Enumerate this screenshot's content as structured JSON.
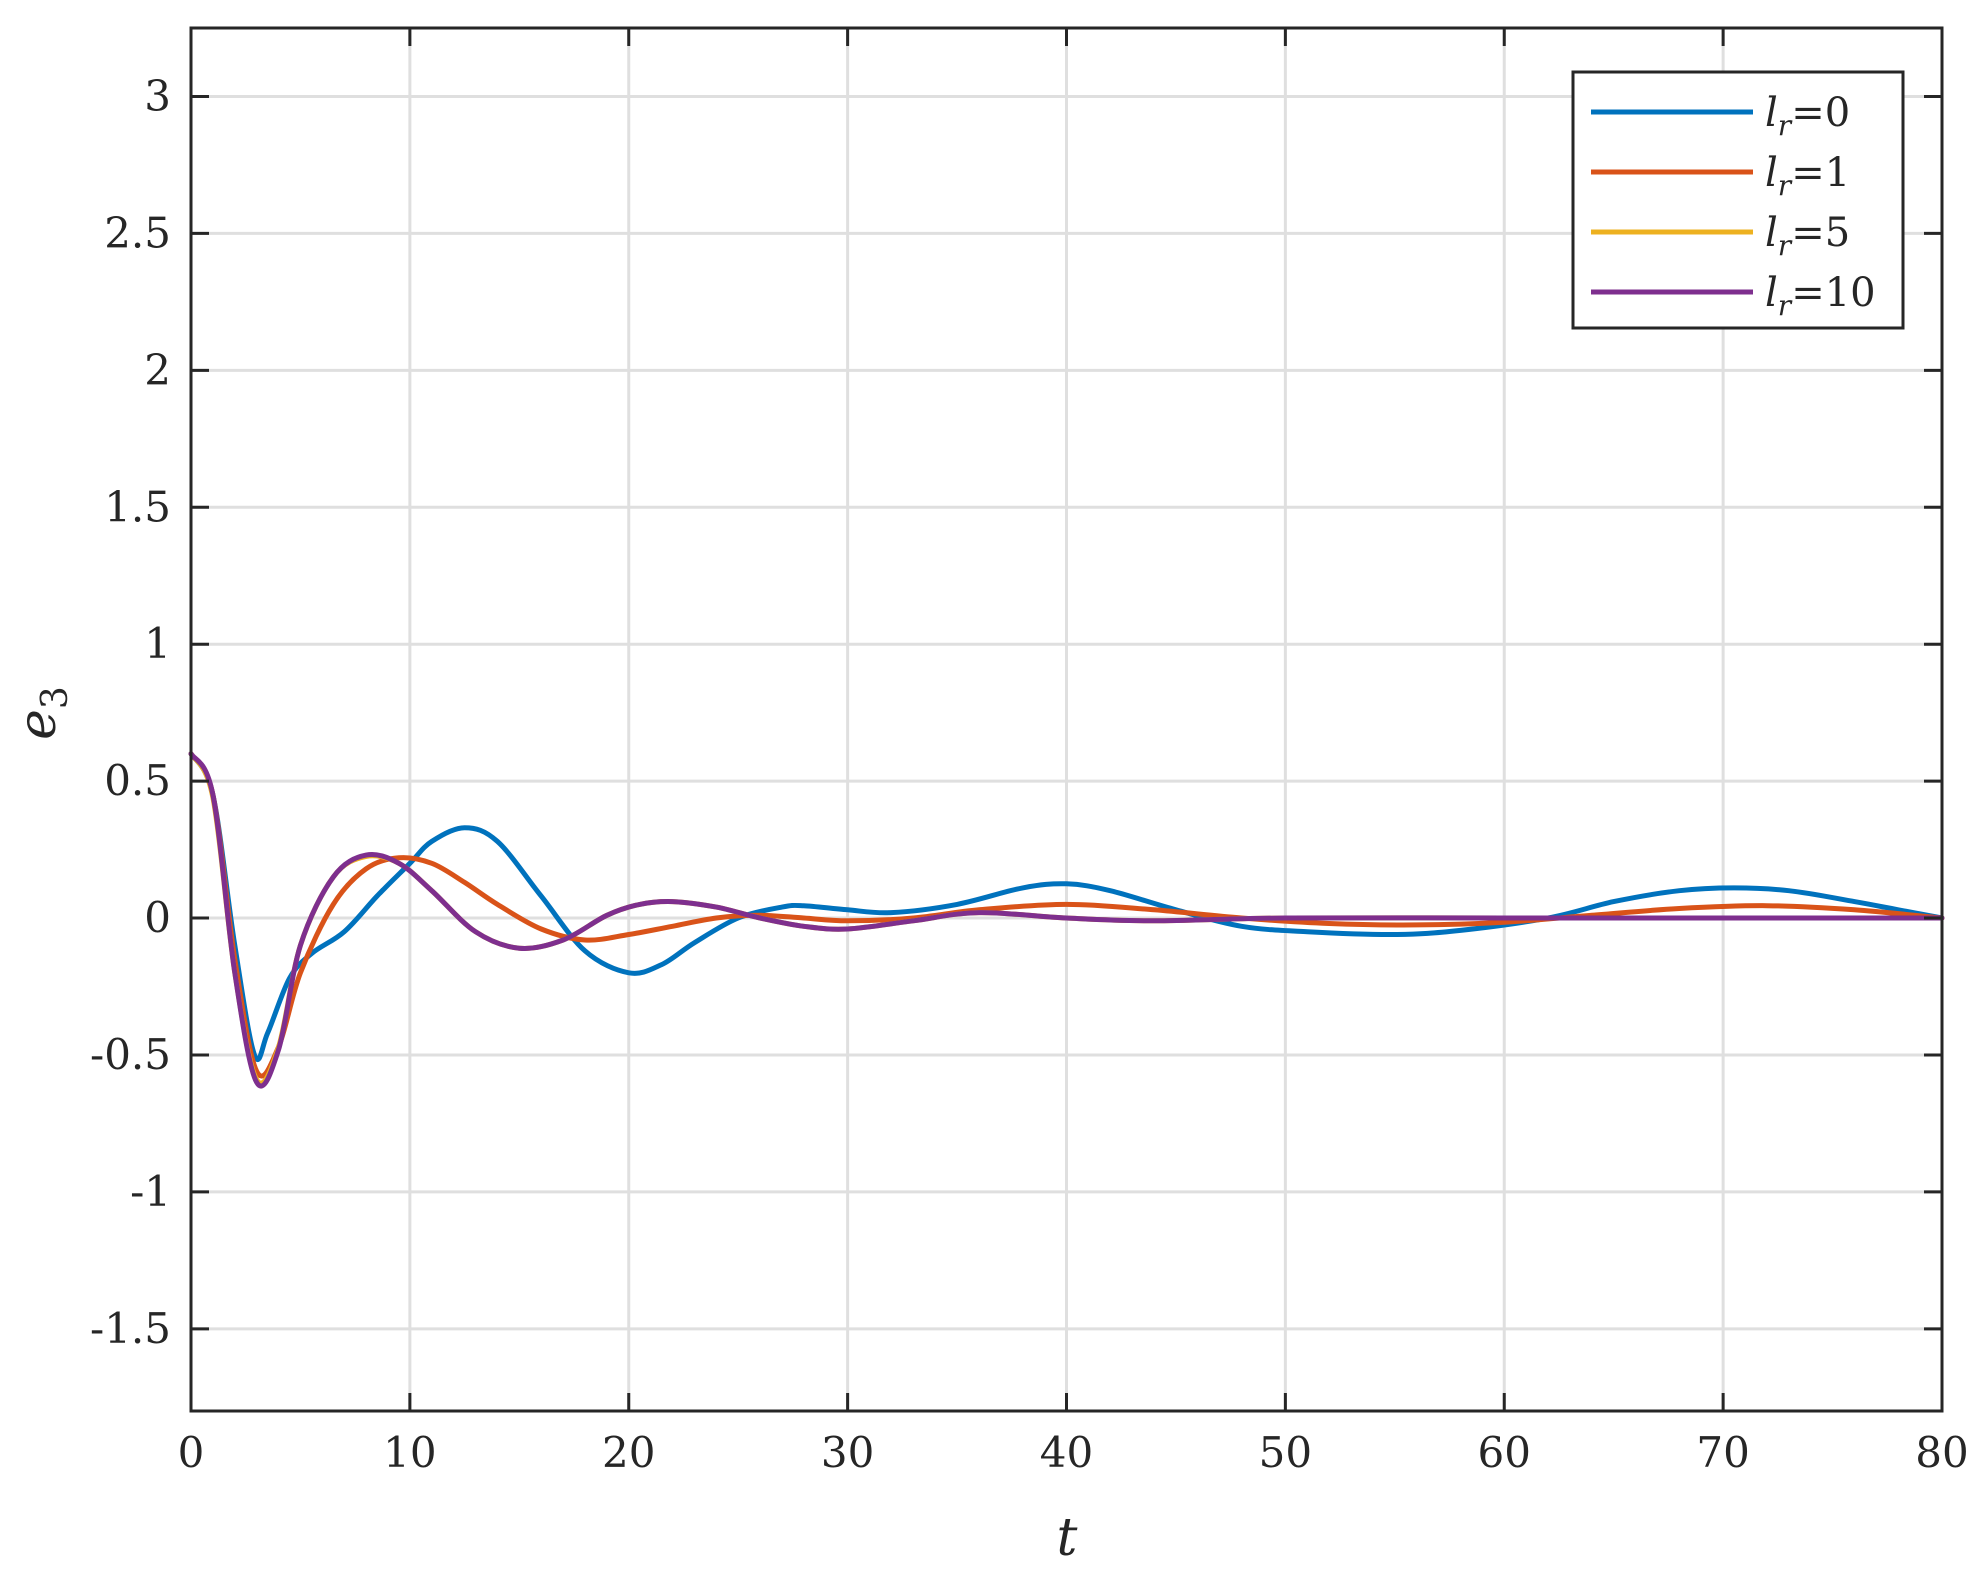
{
  "chart_data": {
    "type": "line",
    "xlabel": "t",
    "ylabel": "e",
    "ylabel_subscript": "3",
    "xlim": [
      0,
      80
    ],
    "ylim": [
      -1.8,
      3.25
    ],
    "xticks": [
      0,
      10,
      20,
      30,
      40,
      50,
      60,
      70,
      80
    ],
    "xtick_labels": [
      "0",
      "10",
      "20",
      "30",
      "40",
      "50",
      "60",
      "70",
      "80"
    ],
    "yticks": [
      -1.5,
      -1,
      -0.5,
      0,
      0.5,
      1,
      1.5,
      2,
      2.5,
      3
    ],
    "ytick_labels": [
      "-1.5",
      "-1",
      "-0.5",
      "0",
      "0.5",
      "1",
      "1.5",
      "2",
      "2.5",
      "3"
    ],
    "grid": true,
    "legend_position": "top-right",
    "series": [
      {
        "name": "l_r=0",
        "legend_var": "l",
        "legend_sub": "r",
        "legend_value": "=0",
        "color": "#0072BD",
        "x": [
          0,
          1,
          2,
          2.9,
          3.5,
          4.5,
          5.5,
          7,
          8.5,
          10,
          11,
          12.5,
          14,
          16,
          18,
          20,
          21.5,
          23,
          25,
          27,
          28,
          30,
          32,
          35,
          38,
          40,
          42,
          45,
          48,
          51,
          55,
          58,
          62,
          65,
          68,
          70.5,
          73,
          76,
          78,
          80
        ],
        "y": [
          0.6,
          0.45,
          -0.1,
          -0.5,
          -0.42,
          -0.22,
          -0.13,
          -0.05,
          0.08,
          0.2,
          0.28,
          0.33,
          0.28,
          0.08,
          -0.12,
          -0.2,
          -0.17,
          -0.09,
          0,
          0.04,
          0.045,
          0.03,
          0.02,
          0.05,
          0.11,
          0.125,
          0.1,
          0.03,
          -0.03,
          -0.05,
          -0.06,
          -0.045,
          0,
          0.06,
          0.1,
          0.11,
          0.1,
          0.06,
          0.03,
          0
        ]
      },
      {
        "name": "l_r=1",
        "legend_var": "l",
        "legend_sub": "r",
        "legend_value": "=1",
        "color": "#D95319",
        "x": [
          0,
          1,
          2,
          3,
          4,
          5,
          6.5,
          8,
          9.5,
          11,
          12.5,
          14,
          16,
          18,
          20,
          22,
          24,
          26,
          28,
          30,
          33,
          36,
          40,
          44,
          48,
          52,
          56,
          60,
          64,
          68,
          72,
          76,
          80
        ],
        "y": [
          0.6,
          0.45,
          -0.15,
          -0.56,
          -0.47,
          -0.2,
          0.05,
          0.18,
          0.22,
          0.2,
          0.13,
          0.05,
          -0.04,
          -0.08,
          -0.06,
          -0.03,
          0,
          0.01,
          0,
          -0.01,
          0,
          0.03,
          0.05,
          0.03,
          0,
          -0.02,
          -0.025,
          -0.015,
          0.01,
          0.035,
          0.045,
          0.03,
          0
        ]
      },
      {
        "name": "l_r=5",
        "legend_var": "l",
        "legend_sub": "r",
        "legend_value": "=5",
        "color": "#EDB120",
        "x": [
          0,
          1,
          2,
          3,
          4,
          5,
          6.5,
          8,
          9.5,
          11,
          13,
          15,
          17,
          19,
          20.5,
          22,
          24,
          26,
          28,
          30,
          33,
          36,
          40,
          44,
          50,
          60,
          70,
          80
        ],
        "y": [
          0.6,
          0.44,
          -0.2,
          -0.59,
          -0.47,
          -0.1,
          0.15,
          0.225,
          0.2,
          0.1,
          -0.05,
          -0.11,
          -0.08,
          0.01,
          0.05,
          0.06,
          0.04,
          0,
          -0.03,
          -0.04,
          -0.01,
          0.02,
          0,
          -0.01,
          0,
          0,
          0,
          0
        ]
      },
      {
        "name": "l_r=10",
        "legend_var": "l",
        "legend_sub": "r",
        "legend_value": "=10",
        "color": "#7E2F8E",
        "x": [
          0,
          1,
          2,
          3,
          4,
          5,
          6.5,
          8,
          9.5,
          11,
          13,
          15,
          17,
          19,
          20.5,
          22,
          24,
          26,
          28,
          30,
          33,
          36,
          40,
          44,
          50,
          60,
          70,
          80
        ],
        "y": [
          0.6,
          0.45,
          -0.2,
          -0.6,
          -0.48,
          -0.1,
          0.15,
          0.23,
          0.2,
          0.1,
          -0.05,
          -0.11,
          -0.08,
          0.01,
          0.05,
          0.06,
          0.04,
          0,
          -0.03,
          -0.04,
          -0.01,
          0.02,
          0,
          -0.01,
          0,
          0,
          0,
          0
        ]
      }
    ]
  }
}
